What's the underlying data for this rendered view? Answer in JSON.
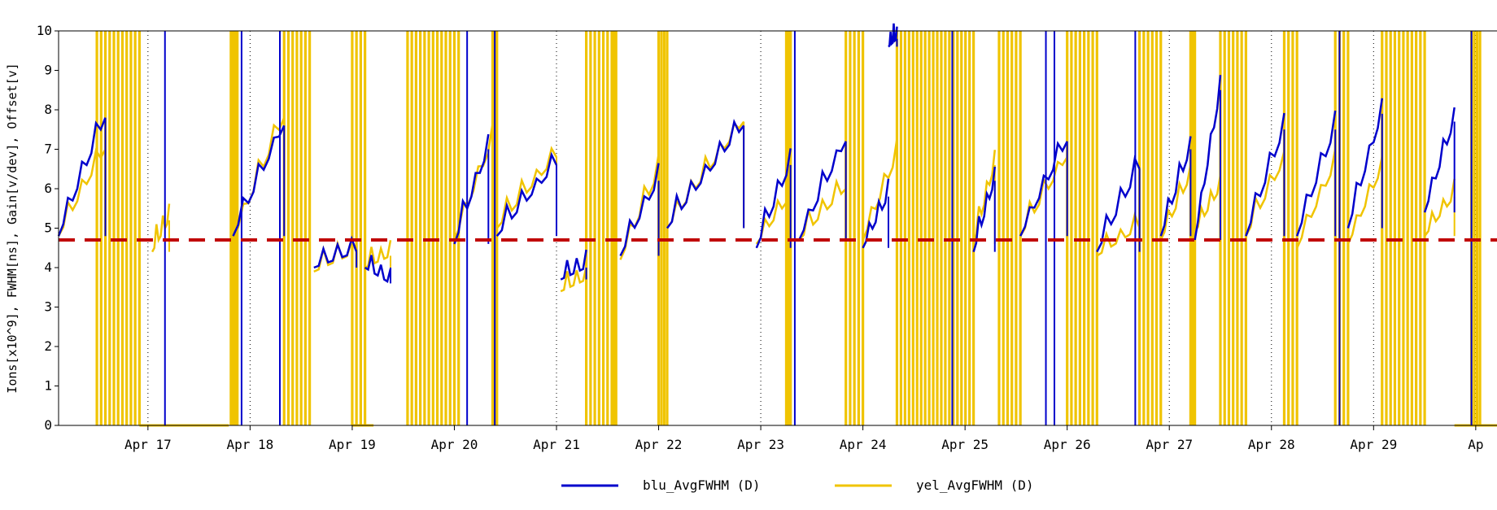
{
  "chart_data": {
    "type": "line",
    "title": "",
    "ylabel": "Ions[x10^9], FWHM[ns], Gain[v/dev], Offset[v]",
    "xlabel": "",
    "ylim": [
      0,
      10
    ],
    "y_ticks": [
      0,
      1,
      2,
      3,
      4,
      5,
      6,
      7,
      8,
      9,
      10
    ],
    "xlim": [
      "Apr 16 03:00",
      "Apr 30 05:00"
    ],
    "x_ticks": [
      "Apr 17",
      "Apr 18",
      "Apr 19",
      "Apr 20",
      "Apr 21",
      "Apr 22",
      "Apr 23",
      "Apr 24",
      "Apr 25",
      "Apr 26",
      "Apr 27",
      "Apr 28",
      "Apr 29",
      "Apr 30"
    ],
    "x_tick_labels": [
      "Apr 17",
      "Apr 18",
      "Apr 19",
      "Apr 20",
      "Apr 21",
      "Apr 22",
      "Apr 23",
      "Apr 24",
      "Apr 25",
      "Apr 26",
      "Apr 27",
      "Apr 28",
      "Apr 29",
      "Ap"
    ],
    "grid": "vertical dotted at day boundaries",
    "legend_position": "bottom-center",
    "reference_line": {
      "y": 4.7,
      "style": "dashed",
      "color": "#c00000"
    },
    "colors": {
      "blu": "#0000cc",
      "yel": "#f0c400",
      "ref": "#c00000"
    },
    "series": [
      {
        "name": "blu_AvgFWHM (D)",
        "color": "#0000cc",
        "segments": [
          {
            "x0": "Apr 16 03:00",
            "x1": "Apr 16 14:00",
            "y0": 4.8,
            "y1": 7.8
          },
          {
            "x0": "Apr 17 20:00",
            "x1": "Apr 18 08:00",
            "y0": 4.8,
            "y1": 7.6
          },
          {
            "x0": "Apr 18 15:00",
            "x1": "Apr 19 01:00",
            "y0": 4.0,
            "y1": 4.4
          },
          {
            "x0": "Apr 19 03:00",
            "x1": "Apr 19 09:00",
            "y0": 4.0,
            "y1": 3.6
          },
          {
            "x0": "Apr 20 00:00",
            "x1": "Apr 20 08:00",
            "y0": 4.6,
            "y1": 7.0
          },
          {
            "x0": "Apr 20 10:00",
            "x1": "Apr 21 00:00",
            "y0": 4.8,
            "y1": 6.6
          },
          {
            "x0": "Apr 21 01:00",
            "x1": "Apr 21 07:00",
            "y0": 3.7,
            "y1": 4.0
          },
          {
            "x0": "Apr 21 15:00",
            "x1": "Apr 22 00:00",
            "y0": 4.3,
            "y1": 6.2
          },
          {
            "x0": "Apr 22 02:00",
            "x1": "Apr 22 20:00",
            "y0": 5.0,
            "y1": 7.6
          },
          {
            "x0": "Apr 22 23:00",
            "x1": "Apr 23 07:00",
            "y0": 4.5,
            "y1": 6.6
          },
          {
            "x0": "Apr 23 09:00",
            "x1": "Apr 23 20:00",
            "y0": 4.7,
            "y1": 7.2
          },
          {
            "x0": "Apr 24 00:00",
            "x1": "Apr 24 06:00",
            "y0": 4.5,
            "y1": 5.8
          },
          {
            "x0": "Apr 24 06:00",
            "x1": "Apr 24 08:00",
            "y0": 9.6,
            "y1": 9.8
          },
          {
            "x0": "Apr 25 02:00",
            "x1": "Apr 25 07:00",
            "y0": 4.4,
            "y1": 6.2
          },
          {
            "x0": "Apr 25 13:00",
            "x1": "Apr 26 00:00",
            "y0": 4.8,
            "y1": 7.2
          },
          {
            "x0": "Apr 26 07:00",
            "x1": "Apr 26 17:00",
            "y0": 4.4,
            "y1": 6.5
          },
          {
            "x0": "Apr 26 22:00",
            "x1": "Apr 27 05:00",
            "y0": 4.8,
            "y1": 7.0
          },
          {
            "x0": "Apr 27 06:00",
            "x1": "Apr 27 12:00",
            "y0": 4.7,
            "y1": 8.5
          },
          {
            "x0": "Apr 27 18:00",
            "x1": "Apr 28 03:00",
            "y0": 4.8,
            "y1": 7.5
          },
          {
            "x0": "Apr 28 06:00",
            "x1": "Apr 28 15:00",
            "y0": 4.8,
            "y1": 7.5
          },
          {
            "x0": "Apr 28 18:00",
            "x1": "Apr 29 02:00",
            "y0": 5.0,
            "y1": 7.9
          },
          {
            "x0": "Apr 29 12:00",
            "x1": "Apr 29 19:00",
            "y0": 5.4,
            "y1": 7.7
          }
        ]
      },
      {
        "name": "yel_AvgFWHM (D)",
        "color": "#f0c400",
        "segments": [
          {
            "x0": "Apr 16 03:00",
            "x1": "Apr 16 14:00",
            "y0": 4.8,
            "y1": 7.0
          },
          {
            "x0": "Apr 17 01:00",
            "x1": "Apr 17 05:00",
            "y0": 4.4,
            "y1": 5.2
          },
          {
            "x0": "Apr 17 20:00",
            "x1": "Apr 18 08:00",
            "y0": 4.7,
            "y1": 7.8
          },
          {
            "x0": "Apr 18 15:00",
            "x1": "Apr 19 01:00",
            "y0": 3.9,
            "y1": 4.4
          },
          {
            "x0": "Apr 19 03:00",
            "x1": "Apr 19 09:00",
            "y0": 4.0,
            "y1": 4.3
          },
          {
            "x0": "Apr 20 00:00",
            "x1": "Apr 20 09:00",
            "y0": 4.7,
            "y1": 7.2
          },
          {
            "x0": "Apr 20 10:00",
            "x1": "Apr 21 00:00",
            "y0": 5.0,
            "y1": 6.8
          },
          {
            "x0": "Apr 21 01:00",
            "x1": "Apr 21 07:00",
            "y0": 3.4,
            "y1": 3.7
          },
          {
            "x0": "Apr 21 15:00",
            "x1": "Apr 22 00:00",
            "y0": 4.2,
            "y1": 6.4
          },
          {
            "x0": "Apr 22 02:00",
            "x1": "Apr 22 20:00",
            "y0": 5.0,
            "y1": 7.7
          },
          {
            "x0": "Apr 22 23:00",
            "x1": "Apr 23 07:00",
            "y0": 4.6,
            "y1": 5.8
          },
          {
            "x0": "Apr 23 09:00",
            "x1": "Apr 23 20:00",
            "y0": 4.7,
            "y1": 6.0
          },
          {
            "x0": "Apr 24 00:00",
            "x1": "Apr 24 08:00",
            "y0": 4.7,
            "y1": 6.8
          },
          {
            "x0": "Apr 25 02:00",
            "x1": "Apr 25 07:00",
            "y0": 4.6,
            "y1": 6.6
          },
          {
            "x0": "Apr 25 13:00",
            "x1": "Apr 26 00:00",
            "y0": 4.8,
            "y1": 6.8
          },
          {
            "x0": "Apr 26 07:00",
            "x1": "Apr 26 17:00",
            "y0": 4.3,
            "y1": 5.0
          },
          {
            "x0": "Apr 26 22:00",
            "x1": "Apr 27 05:00",
            "y0": 4.7,
            "y1": 6.3
          },
          {
            "x0": "Apr 27 06:00",
            "x1": "Apr 27 12:00",
            "y0": 4.9,
            "y1": 6.0
          },
          {
            "x0": "Apr 27 18:00",
            "x1": "Apr 28 03:00",
            "y0": 4.8,
            "y1": 6.7
          },
          {
            "x0": "Apr 28 06:00",
            "x1": "Apr 28 15:00",
            "y0": 4.5,
            "y1": 6.6
          },
          {
            "x0": "Apr 28 18:00",
            "x1": "Apr 29 02:00",
            "y0": 4.6,
            "y1": 6.5
          },
          {
            "x0": "Apr 29 12:00",
            "x1": "Apr 29 19:00",
            "y0": 4.8,
            "y1": 5.8
          }
        ],
        "flat_zero_intervals": [
          {
            "x0": "Apr 16 22:00",
            "x1": "Apr 17 05:00"
          },
          {
            "x0": "Apr 17 05:00",
            "x1": "Apr 17 19:00"
          },
          {
            "x0": "Apr 19 00:00",
            "x1": "Apr 19 05:00"
          },
          {
            "x0": "Apr 29 19:00",
            "x1": "Apr 30 05:00"
          }
        ],
        "dense_spike_bands": [
          {
            "x0": "Apr 16 12:00",
            "x1": "Apr 16 22:00"
          },
          {
            "x0": "Apr 17 19:30",
            "x1": "Apr 17 21:00"
          },
          {
            "x0": "Apr 18 08:00",
            "x1": "Apr 18 14:00"
          },
          {
            "x0": "Apr 19 00:00",
            "x1": "Apr 19 03:00"
          },
          {
            "x0": "Apr 19 13:00",
            "x1": "Apr 19 21:00"
          },
          {
            "x0": "Apr 19 22:00",
            "x1": "Apr 20 01:00"
          },
          {
            "x0": "Apr 20 09:00",
            "x1": "Apr 20 10:00"
          },
          {
            "x0": "Apr 21 07:00",
            "x1": "Apr 21 12:00"
          },
          {
            "x0": "Apr 21 13:00",
            "x1": "Apr 21 14:00"
          },
          {
            "x0": "Apr 22 00:00",
            "x1": "Apr 22 02:00"
          },
          {
            "x0": "Apr 23 06:00",
            "x1": "Apr 23 07:00"
          },
          {
            "x0": "Apr 23 20:00",
            "x1": "Apr 24 00:00"
          },
          {
            "x0": "Apr 24 08:00",
            "x1": "Apr 25 02:00"
          },
          {
            "x0": "Apr 25 08:00",
            "x1": "Apr 25 13:00"
          },
          {
            "x0": "Apr 26 00:00",
            "x1": "Apr 26 07:00"
          },
          {
            "x0": "Apr 26 17:00",
            "x1": "Apr 26 22:00"
          },
          {
            "x0": "Apr 27 05:00",
            "x1": "Apr 27 06:00"
          },
          {
            "x0": "Apr 27 12:00",
            "x1": "Apr 27 18:00"
          },
          {
            "x0": "Apr 28 03:00",
            "x1": "Apr 28 06:00"
          },
          {
            "x0": "Apr 28 15:00",
            "x1": "Apr 28 18:00"
          },
          {
            "x0": "Apr 29 02:00",
            "x1": "Apr 29 12:00"
          },
          {
            "x0": "Apr 29 23:00",
            "x1": "Apr 30 01:00"
          }
        ]
      }
    ]
  }
}
